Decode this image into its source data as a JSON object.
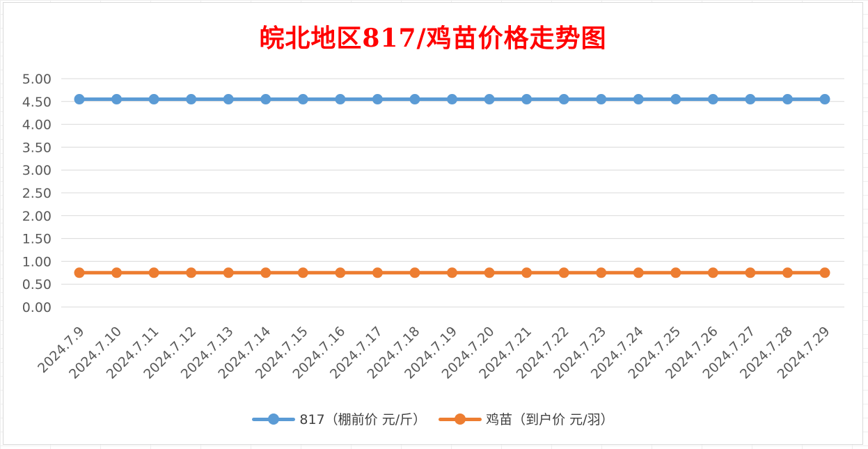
{
  "chart_data": {
    "type": "line",
    "title": "皖北地区817/鸡苗价格走势图",
    "xlabel": "",
    "ylabel": "",
    "ylim": [
      0,
      5
    ],
    "yticks": [
      "0.00",
      "0.50",
      "1.00",
      "1.50",
      "2.00",
      "2.50",
      "3.00",
      "3.50",
      "4.00",
      "4.50",
      "5.00"
    ],
    "grid": true,
    "legend_position": "bottom",
    "categories": [
      "2024.7.9",
      "2024.7.10",
      "2024.7.11",
      "2024.7.12",
      "2024.7.13",
      "2024.7.14",
      "2024.7.15",
      "2024.7.16",
      "2024.7.17",
      "2024.7.18",
      "2024.7.19",
      "2024.7.20",
      "2024.7.21",
      "2024.7.22",
      "2024.7.23",
      "2024.7.24",
      "2024.7.25",
      "2024.7.26",
      "2024.7.27",
      "2024.7.28",
      "2024.7.29"
    ],
    "series": [
      {
        "name": "817（棚前价 元/斤）",
        "color": "#5b9bd5",
        "values": [
          4.55,
          4.55,
          4.55,
          4.55,
          4.55,
          4.55,
          4.55,
          4.55,
          4.55,
          4.55,
          4.55,
          4.55,
          4.55,
          4.55,
          4.55,
          4.55,
          4.55,
          4.55,
          4.55,
          4.55,
          4.55
        ]
      },
      {
        "name": "鸡苗（到户价 元/羽）",
        "color": "#ed7d31",
        "values": [
          0.75,
          0.75,
          0.75,
          0.75,
          0.75,
          0.75,
          0.75,
          0.75,
          0.75,
          0.75,
          0.75,
          0.75,
          0.75,
          0.75,
          0.75,
          0.75,
          0.75,
          0.75,
          0.75,
          0.75,
          0.75
        ]
      }
    ]
  }
}
